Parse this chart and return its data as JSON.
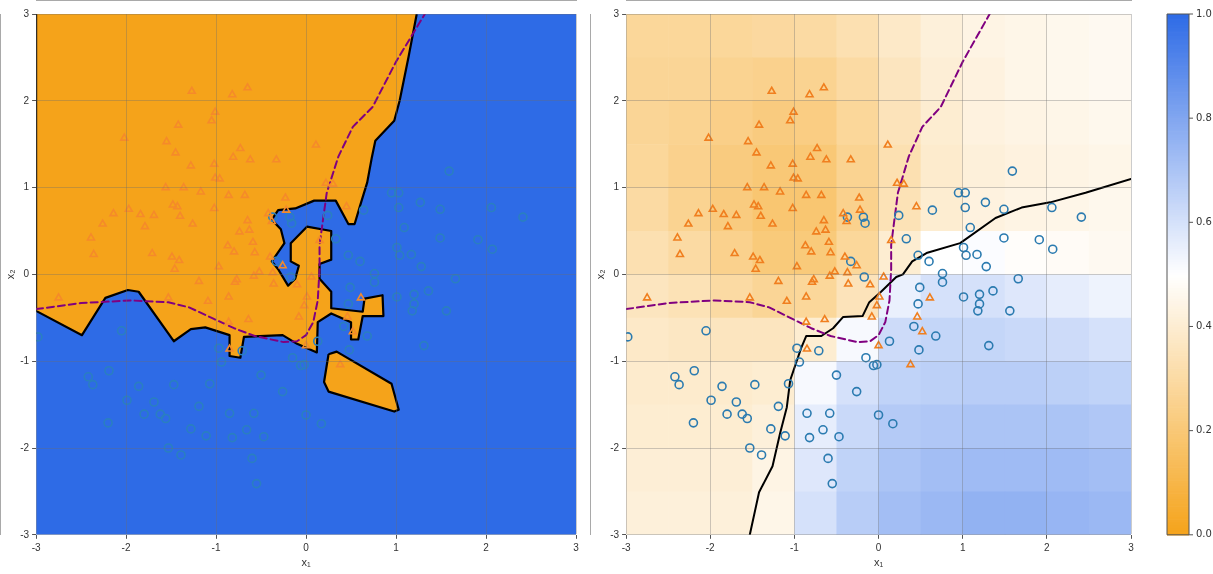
{
  "chart_data": [
    {
      "type": "scatter",
      "color": "#2e6be6",
      "xlabel": "x₁",
      "ylabel": "x₂",
      "xlim": [
        -3,
        3
      ],
      "ylim": [
        -3,
        3
      ],
      "xticks": [
        -3,
        -2,
        -1,
        0,
        1,
        2,
        3
      ],
      "yticks": [
        -3,
        -2,
        -1,
        0,
        1,
        2,
        3
      ],
      "grid": true,
      "series": [
        {
          "type": "area",
          "color": "#f5a31a",
          "x": [
            1.23,
            1.14,
            1.04,
            0.98,
            0.77,
            0.73,
            0.68,
            0.6,
            0.54,
            0.47,
            0.33,
            0.09,
            -0.12,
            -0.31,
            -0.38,
            -0.28,
            -0.24,
            -0.38,
            -0.31,
            -0.2,
            -0.12,
            -0.08,
            -0.17,
            -0.17,
            0.01,
            0.28,
            0.28,
            0.15,
            0.15,
            0.28,
            0.28,
            0.63,
            0.65,
            0.85,
            0.86,
            0.63,
            0.58,
            0.5,
            0.5,
            0.28,
            0.13,
            0.12,
            -0.1,
            -0.26,
            -0.69,
            -0.73,
            -0.85,
            -0.85,
            -1.12,
            -1.28,
            -1.47,
            -1.86,
            -1.98,
            -2.23,
            -2.49,
            -3,
            -3
          ],
          "values": [
            3,
            2.51,
            2.0,
            1.77,
            1.54,
            1.34,
            1.06,
            0.79,
            0.58,
            0.58,
            0.85,
            0.85,
            0.76,
            0.74,
            0.63,
            0.52,
            0.36,
            0.15,
            0.06,
            -0.13,
            -0.05,
            0.1,
            0.15,
            0.36,
            0.55,
            0.5,
            0.17,
            0.12,
            -0.05,
            -0.2,
            -0.39,
            -0.43,
            -0.28,
            -0.24,
            -0.48,
            -0.48,
            -0.75,
            -0.75,
            -0.55,
            -0.45,
            -0.55,
            -0.9,
            -0.8,
            -0.7,
            -0.72,
            -0.96,
            -0.94,
            -0.7,
            -0.61,
            -0.63,
            -0.77,
            -0.2,
            -0.18,
            -0.27,
            -0.7,
            -0.42,
            3
          ]
        },
        {
          "type": "area",
          "color": "#f5a31a",
          "x": [
            0.25,
            0.34,
            0.95,
            1.03,
            0.98,
            0.25,
            0.2,
            0.25
          ],
          "values": [
            -0.92,
            -0.89,
            -1.26,
            -1.56,
            -1.58,
            -1.35,
            -1.24,
            -0.92
          ]
        },
        {
          "type": "scatter",
          "marker": "triangle",
          "color": "#f58a2a",
          "x": [
            -1.27,
            -0.82,
            -0.65,
            -1.01,
            -1.05,
            -1.42,
            -2.02,
            -1.55,
            -1.45,
            -0.73,
            -0.81,
            -0.62,
            -0.33,
            -1.28,
            -1.02,
            -1.01,
            -0.96,
            -1.56,
            -1.36,
            -1.17,
            -1.48,
            -1.97,
            -2.14,
            -1.84,
            -1.69,
            -1.43,
            -1.4,
            -1.02,
            -0.86,
            -0.68,
            -0.23,
            -0.22,
            -2.26,
            -1.79,
            -1.26,
            -0.65,
            -0.63,
            -0.38,
            -0.74,
            -2.39,
            -2.36,
            -1.71,
            -1.49,
            -1.41,
            -1.46,
            -0.97,
            -0.87,
            -0.8,
            -0.59,
            -0.57,
            -0.4,
            -0.26,
            -1.19,
            -0.77,
            -0.79,
            -0.58,
            -0.52,
            -0.37,
            -0.36,
            -0.1,
            -2.75,
            -1.53,
            -1.09,
            -0.86,
            -0.86,
            -0.64,
            -0.85,
            -0.02,
            -0.08,
            0.0,
            0.11,
            0.22,
            0.3,
            0.45,
            0.15,
            0.06,
            0.01,
            0.61,
            0.46,
            0.52,
            0.38,
            -0.42
          ],
          "values": [
            2.11,
            2.07,
            2.15,
            1.87,
            1.77,
            1.72,
            1.57,
            1.53,
            1.4,
            1.45,
            1.35,
            1.32,
            1.32,
            1.25,
            1.27,
            1.11,
            1.1,
            1.0,
            1.0,
            0.95,
            0.8,
            0.75,
            0.7,
            0.69,
            0.68,
            0.78,
            0.67,
            0.76,
            0.91,
            0.91,
            0.88,
            0.74,
            0.58,
            0.55,
            0.58,
            0.62,
            0.51,
            0.61,
            0.49,
            0.42,
            0.23,
            0.24,
            0.2,
            0.16,
            0.06,
            0.09,
            0.33,
            0.26,
            0.37,
            0.25,
            0.2,
            0.1,
            -0.08,
            -0.06,
            -0.09,
            -0.02,
            0.03,
            0.02,
            -0.11,
            -0.12,
            -0.27,
            -0.27,
            -0.31,
            -0.26,
            -0.55,
            -0.52,
            -0.86,
            -0.36,
            -0.49,
            -0.82,
            1.49,
            1.05,
            1.04,
            0.78,
            0.39,
            -0.03,
            -0.26,
            -0.27,
            -0.49,
            -0.66,
            -1.04,
            0.7
          ]
        },
        {
          "type": "scatter",
          "marker": "circle",
          "color": "#2a7fc0",
          "x": [
            1.59,
            0.95,
            1.03,
            0.24,
            0.64,
            1.03,
            1.27,
            1.49,
            2.06,
            2.41,
            1.09,
            0.33,
            1.49,
            1.91,
            2.07,
            0.47,
            0.6,
            1.01,
            1.04,
            1.17,
            1.28,
            0.76,
            -0.37,
            -0.18,
            -0.16,
            -0.33,
            -0.17,
            0.76,
            1.66,
            0.49,
            1.01,
            1.2,
            1.36,
            1.2,
            1.18,
            1.56,
            0.47,
            0.42,
            0.68,
            0.13,
            0.48,
            1.31,
            -0.02,
            0.0,
            0.17,
            -2.98,
            -2.05,
            -0.97,
            -0.71,
            -0.94,
            -2.42,
            -2.37,
            -2.19,
            -1.86,
            -1.47,
            -1.07,
            -0.5,
            -0.15,
            -0.06,
            -0.26,
            -1.99,
            -1.69,
            -1.8,
            -1.62,
            -1.56,
            -2.2,
            -1.19,
            -0.85,
            -0.58,
            -1.28,
            -1.11,
            -0.82,
            -0.66,
            -0.47,
            -1.53,
            -1.39,
            -0.6,
            -0.55
          ],
          "values": [
            1.19,
            0.94,
            0.94,
            0.68,
            0.74,
            0.77,
            0.83,
            0.75,
            0.77,
            0.66,
            0.54,
            0.41,
            0.42,
            0.4,
            0.29,
            0.22,
            0.15,
            0.31,
            0.22,
            0.23,
            0.09,
            0.01,
            0.66,
            0.66,
            0.59,
            0.15,
            -0.03,
            -0.09,
            -0.05,
            -0.15,
            -0.26,
            -0.23,
            -0.19,
            -0.34,
            -0.42,
            -0.42,
            -0.34,
            -0.6,
            -0.71,
            -0.77,
            -0.87,
            -0.82,
            -1.04,
            -1.62,
            -1.72,
            -0.72,
            -0.65,
            -0.85,
            -0.88,
            -1.01,
            -1.18,
            -1.27,
            -1.11,
            -1.29,
            -1.27,
            -1.26,
            -1.16,
            -0.96,
            -1.05,
            -1.35,
            -1.45,
            -1.47,
            -1.61,
            -1.61,
            -1.66,
            -1.71,
            -1.52,
            -1.6,
            -1.6,
            -1.78,
            -1.86,
            -1.88,
            -1.79,
            -1.87,
            -2.0,
            -2.08,
            -2.12,
            -2.41
          ]
        },
        {
          "type": "line",
          "line_style": "dashed",
          "color": "#800080",
          "x": [
            -3,
            -2.5,
            -1.95,
            -1.53,
            -1.3,
            -1.03,
            -0.8,
            -0.57,
            -0.25,
            -0.1,
            0,
            0.08,
            0.13,
            0.15,
            0.15,
            0.23,
            0.36,
            0.52,
            0.74,
            1.0,
            1.32
          ],
          "values": [
            -0.4,
            -0.33,
            -0.3,
            -0.32,
            -0.38,
            -0.51,
            -0.62,
            -0.71,
            -0.78,
            -0.77,
            -0.7,
            -0.55,
            -0.3,
            0.06,
            0.34,
            0.94,
            1.36,
            1.7,
            1.93,
            2.45,
            3.0
          ]
        }
      ]
    },
    {
      "type": "heatmap",
      "xlabel": "x₁",
      "ylabel": "x₂",
      "xlim": [
        -3,
        3
      ],
      "ylim": [
        -3,
        3
      ],
      "xticks": [
        -3,
        -2,
        -1,
        0,
        1,
        2,
        3
      ],
      "yticks": [
        -3,
        -2,
        -1,
        0,
        1,
        2,
        3
      ],
      "grid": true,
      "clim": [
        0,
        1
      ],
      "cticks": [
        {
          "value": 0,
          "label": "0.0"
        },
        {
          "value": 0.2,
          "label": "0.2"
        },
        {
          "value": 0.4,
          "label": "0.4"
        },
        {
          "value": 0.6,
          "label": "0.6"
        },
        {
          "value": 0.8,
          "label": "0.8"
        },
        {
          "value": 1,
          "label": "1.0"
        }
      ],
      "cells": [
        [
          0.28,
          0.28,
          0.28,
          0.29,
          0.3,
          0.33,
          0.38,
          0.42,
          0.44,
          0.45,
          0.46,
          0.47
        ],
        [
          0.27,
          0.27,
          0.26,
          0.25,
          0.26,
          0.3,
          0.36,
          0.41,
          0.43,
          0.45,
          0.46,
          0.47
        ],
        [
          0.27,
          0.26,
          0.24,
          0.22,
          0.23,
          0.28,
          0.35,
          0.4,
          0.43,
          0.44,
          0.45,
          0.46
        ],
        [
          0.28,
          0.25,
          0.22,
          0.2,
          0.2,
          0.26,
          0.33,
          0.39,
          0.42,
          0.43,
          0.44,
          0.45
        ],
        [
          0.3,
          0.26,
          0.22,
          0.19,
          0.19,
          0.25,
          0.34,
          0.4,
          0.43,
          0.44,
          0.45,
          0.46
        ],
        [
          0.33,
          0.3,
          0.25,
          0.21,
          0.21,
          0.28,
          0.4,
          0.5,
          0.51,
          0.49,
          0.48,
          0.47
        ],
        [
          0.36,
          0.34,
          0.3,
          0.27,
          0.28,
          0.35,
          0.55,
          0.6,
          0.6,
          0.58,
          0.56,
          0.54
        ],
        [
          0.38,
          0.37,
          0.36,
          0.36,
          0.4,
          0.52,
          0.62,
          0.64,
          0.64,
          0.63,
          0.62,
          0.6
        ],
        [
          0.39,
          0.39,
          0.39,
          0.4,
          0.52,
          0.6,
          0.65,
          0.66,
          0.67,
          0.67,
          0.66,
          0.65
        ],
        [
          0.4,
          0.4,
          0.4,
          0.42,
          0.56,
          0.63,
          0.68,
          0.69,
          0.7,
          0.7,
          0.7,
          0.69
        ],
        [
          0.41,
          0.41,
          0.41,
          0.44,
          0.58,
          0.65,
          0.7,
          0.72,
          0.73,
          0.73,
          0.73,
          0.72
        ],
        [
          0.42,
          0.42,
          0.42,
          0.45,
          0.6,
          0.67,
          0.72,
          0.74,
          0.76,
          0.76,
          0.75,
          0.74
        ]
      ],
      "series": [
        {
          "type": "scatter",
          "marker": "triangle",
          "color": "#f07f1f",
          "x": [
            -1.27,
            -0.82,
            -0.65,
            -1.01,
            -1.05,
            -1.42,
            -2.02,
            -1.55,
            -1.45,
            -0.73,
            -0.81,
            -0.62,
            -0.33,
            -1.28,
            -1.02,
            -1.01,
            -0.96,
            -1.56,
            -1.36,
            -1.17,
            -1.48,
            -1.97,
            -2.14,
            -1.84,
            -1.69,
            -1.43,
            -1.4,
            -1.02,
            -0.86,
            -0.68,
            -0.23,
            -0.22,
            -2.26,
            -1.79,
            -1.26,
            -0.65,
            -0.63,
            -0.38,
            -0.74,
            -2.39,
            -2.36,
            -1.71,
            -1.49,
            -1.41,
            -1.46,
            -0.97,
            -0.87,
            -0.8,
            -0.59,
            -0.57,
            -0.4,
            -0.26,
            -1.19,
            -0.77,
            -0.79,
            -0.58,
            -0.52,
            -0.37,
            -0.36,
            -0.1,
            -2.75,
            -1.53,
            -1.09,
            -0.86,
            -0.86,
            -0.64,
            -0.85,
            -0.02,
            -0.08,
            0.0,
            0.11,
            0.22,
            0.3,
            0.45,
            0.15,
            0.06,
            0.01,
            0.61,
            0.46,
            0.52,
            0.38,
            -0.42
          ],
          "values": [
            2.11,
            2.07,
            2.15,
            1.87,
            1.77,
            1.72,
            1.57,
            1.53,
            1.4,
            1.45,
            1.35,
            1.32,
            1.32,
            1.25,
            1.27,
            1.11,
            1.1,
            1.0,
            1.0,
            0.95,
            0.8,
            0.75,
            0.7,
            0.69,
            0.68,
            0.78,
            0.67,
            0.76,
            0.91,
            0.91,
            0.88,
            0.74,
            0.58,
            0.55,
            0.58,
            0.62,
            0.51,
            0.61,
            0.49,
            0.42,
            0.23,
            0.24,
            0.2,
            0.16,
            0.06,
            0.09,
            0.33,
            0.26,
            0.37,
            0.25,
            0.2,
            0.1,
            -0.08,
            -0.06,
            -0.09,
            -0.02,
            0.03,
            0.02,
            -0.11,
            -0.12,
            -0.27,
            -0.27,
            -0.31,
            -0.26,
            -0.55,
            -0.52,
            -0.86,
            -0.36,
            -0.49,
            -0.82,
            1.49,
            1.05,
            1.04,
            0.78,
            0.39,
            -0.03,
            -0.26,
            -0.27,
            -0.49,
            -0.66,
            -1.04,
            0.7
          ]
        },
        {
          "type": "scatter",
          "marker": "circle",
          "color": "#2b7bb0",
          "x": [
            1.59,
            0.95,
            1.03,
            0.24,
            0.64,
            1.03,
            1.27,
            1.49,
            2.06,
            2.41,
            1.09,
            0.33,
            1.49,
            1.91,
            2.07,
            0.47,
            0.6,
            1.01,
            1.04,
            1.17,
            1.28,
            0.76,
            -0.37,
            -0.18,
            -0.16,
            -0.33,
            -0.17,
            0.76,
            1.66,
            0.49,
            1.01,
            1.2,
            1.36,
            1.2,
            1.18,
            1.56,
            0.47,
            0.42,
            0.68,
            0.13,
            0.48,
            1.31,
            -0.02,
            0.0,
            0.17,
            -2.98,
            -2.05,
            -0.97,
            -0.71,
            -0.94,
            -2.42,
            -2.37,
            -2.19,
            -1.86,
            -1.47,
            -1.07,
            -0.5,
            -0.15,
            -0.06,
            -0.26,
            -1.99,
            -1.69,
            -1.8,
            -1.62,
            -1.56,
            -2.2,
            -1.19,
            -0.85,
            -0.58,
            -1.28,
            -1.11,
            -0.82,
            -0.66,
            -0.47,
            -1.53,
            -1.39,
            -0.6,
            -0.55
          ],
          "values": [
            1.19,
            0.94,
            0.94,
            0.68,
            0.74,
            0.77,
            0.83,
            0.75,
            0.77,
            0.66,
            0.54,
            0.41,
            0.42,
            0.4,
            0.29,
            0.22,
            0.15,
            0.31,
            0.22,
            0.23,
            0.09,
            0.01,
            0.66,
            0.66,
            0.59,
            0.15,
            -0.03,
            -0.09,
            -0.05,
            -0.15,
            -0.26,
            -0.23,
            -0.19,
            -0.34,
            -0.42,
            -0.42,
            -0.34,
            -0.6,
            -0.71,
            -0.77,
            -0.87,
            -0.82,
            -1.04,
            -1.62,
            -1.72,
            -0.72,
            -0.65,
            -0.85,
            -0.88,
            -1.01,
            -1.18,
            -1.27,
            -1.11,
            -1.29,
            -1.27,
            -1.26,
            -1.16,
            -0.96,
            -1.05,
            -1.35,
            -1.45,
            -1.47,
            -1.61,
            -1.61,
            -1.66,
            -1.71,
            -1.52,
            -1.6,
            -1.6,
            -1.78,
            -1.86,
            -1.88,
            -1.79,
            -1.87,
            -2.0,
            -2.08,
            -2.12,
            -2.41
          ]
        },
        {
          "type": "line",
          "line_style": "dashed",
          "color": "#800080",
          "x": [
            -3,
            -2.5,
            -1.95,
            -1.53,
            -1.3,
            -1.03,
            -0.8,
            -0.57,
            -0.25,
            -0.1,
            0,
            0.08,
            0.13,
            0.15,
            0.15,
            0.23,
            0.36,
            0.52,
            0.74,
            1.0,
            1.32
          ],
          "values": [
            -0.4,
            -0.33,
            -0.3,
            -0.32,
            -0.38,
            -0.51,
            -0.62,
            -0.71,
            -0.78,
            -0.77,
            -0.7,
            -0.55,
            -0.3,
            0.06,
            0.34,
            0.94,
            1.36,
            1.7,
            1.93,
            2.45,
            3.0
          ]
        },
        {
          "type": "line",
          "line_style": "solid",
          "color": "#000000",
          "x": [
            -1.53,
            -1.42,
            -1.26,
            -1.17,
            -1.09,
            -1.05,
            -0.92,
            -0.86,
            -0.68,
            -0.54,
            -0.42,
            -0.19,
            -0.11,
            0.03,
            0.21,
            0.29,
            0.4,
            0.58,
            0.97,
            1.39,
            1.7,
            2.04,
            2.46,
            3.0
          ],
          "values": [
            -3.0,
            -2.51,
            -2.21,
            -1.83,
            -1.53,
            -1.22,
            -0.85,
            -0.71,
            -0.71,
            -0.62,
            -0.49,
            -0.48,
            -0.32,
            -0.2,
            -0.03,
            0.0,
            0.15,
            0.25,
            0.36,
            0.65,
            0.77,
            0.83,
            0.94,
            1.1
          ]
        }
      ]
    }
  ]
}
